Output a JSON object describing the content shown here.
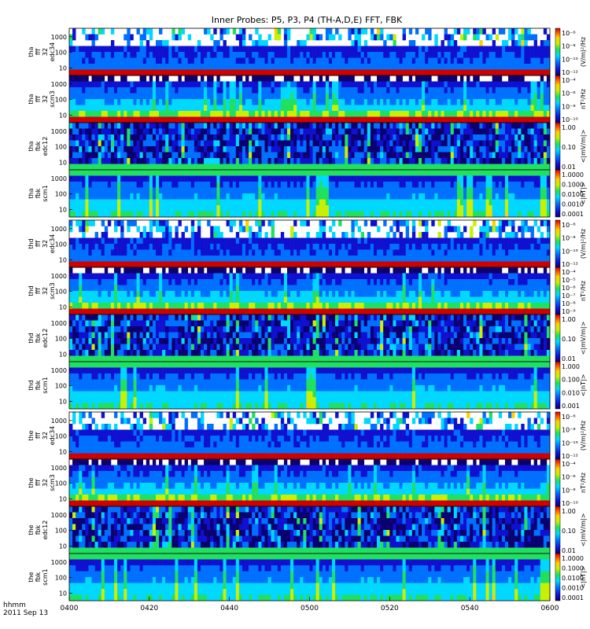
{
  "title": "Inner Probes: P5, P3, P4 (TH-A,D,E) FFT, FBK",
  "time_axis": {
    "tick_labels": [
      "0400",
      "0420",
      "0440",
      "0500",
      "0520",
      "0540",
      "0600"
    ],
    "label_line1": "hhmm",
    "label_line2": "2011 Sep 13"
  },
  "chart_data": {
    "type": "heatmap",
    "title": "Inner Probes: P5, P3, P4 (TH-A,D,E) FFT, FBK",
    "x_range": [
      "0400",
      "0600"
    ],
    "y_scale": "log",
    "color_scale": "rainbow",
    "panels": [
      {
        "lines": [
          "tha",
          "fff",
          "32",
          "edc34"
        ],
        "y_ticks": [
          "1000",
          "100",
          "10"
        ],
        "cb_ticks": [
          "10⁻⁶",
          "10⁻⁸",
          "10⁻¹⁰",
          "10⁻¹²"
        ],
        "cb_label": "(V/m)²/Hz",
        "kind": "fff_e"
      },
      {
        "lines": [
          "tha",
          "fff",
          "32",
          "scm3"
        ],
        "y_ticks": [
          "1000",
          "100",
          "10"
        ],
        "cb_ticks": [
          "10⁻⁴",
          "10⁻⁶",
          "10⁻⁸",
          "10⁻¹⁰"
        ],
        "cb_label": "nT²/Hz",
        "kind": "fff_b"
      },
      {
        "lines": [
          "tha",
          "fbk",
          "edc12"
        ],
        "y_ticks": [
          "1000",
          "100",
          "10"
        ],
        "cb_ticks": [
          "1.00",
          "0.10",
          "0.01"
        ],
        "cb_label": "<|mV/m|>",
        "kind": "fbk_e"
      },
      {
        "lines": [
          "tha",
          "fbk",
          "scm1"
        ],
        "y_ticks": [
          "1000",
          "100",
          "10"
        ],
        "cb_ticks": [
          "1.0000",
          "0.1000",
          "0.0100",
          "0.0010",
          "0.0001"
        ],
        "cb_label": "<|nT|>",
        "kind": "fbk_b"
      },
      {
        "lines": [
          "thd",
          "fff",
          "32",
          "edc34"
        ],
        "y_ticks": [
          "1000",
          "100",
          "10"
        ],
        "cb_ticks": [
          "10⁻⁶",
          "10⁻⁸",
          "10⁻¹⁰",
          "10⁻¹²"
        ],
        "cb_label": "(V/m)²/Hz",
        "kind": "fff_e"
      },
      {
        "lines": [
          "thd",
          "fff",
          "32",
          "scm3"
        ],
        "y_ticks": [
          "1000",
          "100",
          "10"
        ],
        "cb_ticks": [
          "10⁻⁴",
          "10⁻⁵",
          "10⁻⁶",
          "10⁻⁷",
          "10⁻⁸",
          "10⁻⁹"
        ],
        "cb_label": "nT²/Hz",
        "kind": "fff_b"
      },
      {
        "lines": [
          "thd",
          "fbk",
          "edc12"
        ],
        "y_ticks": [
          "1000",
          "100",
          "10"
        ],
        "cb_ticks": [
          "1.00",
          "0.10",
          "0.01"
        ],
        "cb_label": "<|mV/m|>",
        "kind": "fbk_e"
      },
      {
        "lines": [
          "thd",
          "fbk",
          "scm1"
        ],
        "y_ticks": [
          "1000",
          "100",
          "10"
        ],
        "cb_ticks": [
          "1.000",
          "0.100",
          "0.010",
          "0.001"
        ],
        "cb_label": "<|nT|>",
        "kind": "fbk_b"
      },
      {
        "lines": [
          "the",
          "fff",
          "32",
          "edc34"
        ],
        "y_ticks": [
          "1000",
          "100",
          "10"
        ],
        "cb_ticks": [
          "10⁻⁶",
          "10⁻⁸",
          "10⁻¹⁰",
          "10⁻¹²"
        ],
        "cb_label": "(V/m)²/Hz",
        "kind": "fff_e"
      },
      {
        "lines": [
          "the",
          "fff",
          "32",
          "scm3"
        ],
        "y_ticks": [
          "1000",
          "100",
          "10"
        ],
        "cb_ticks": [
          "10⁻⁴",
          "10⁻⁶",
          "10⁻⁸",
          "10⁻¹⁰"
        ],
        "cb_label": "nT²/Hz",
        "kind": "fff_b"
      },
      {
        "lines": [
          "the",
          "fbk",
          "edc12"
        ],
        "y_ticks": [
          "1000",
          "100",
          "10"
        ],
        "cb_ticks": [
          "1.00",
          "0.10",
          "0.01"
        ],
        "cb_label": "<|mV/m|>",
        "kind": "fbk_e"
      },
      {
        "lines": [
          "the",
          "fbk",
          "scm1"
        ],
        "y_ticks": [
          "1000",
          "100",
          "10"
        ],
        "cb_ticks": [
          "1.0000",
          "0.1000",
          "0.0100",
          "0.0010",
          "0.0001"
        ],
        "cb_label": "<|nT|>",
        "kind": "fbk_b"
      }
    ]
  }
}
